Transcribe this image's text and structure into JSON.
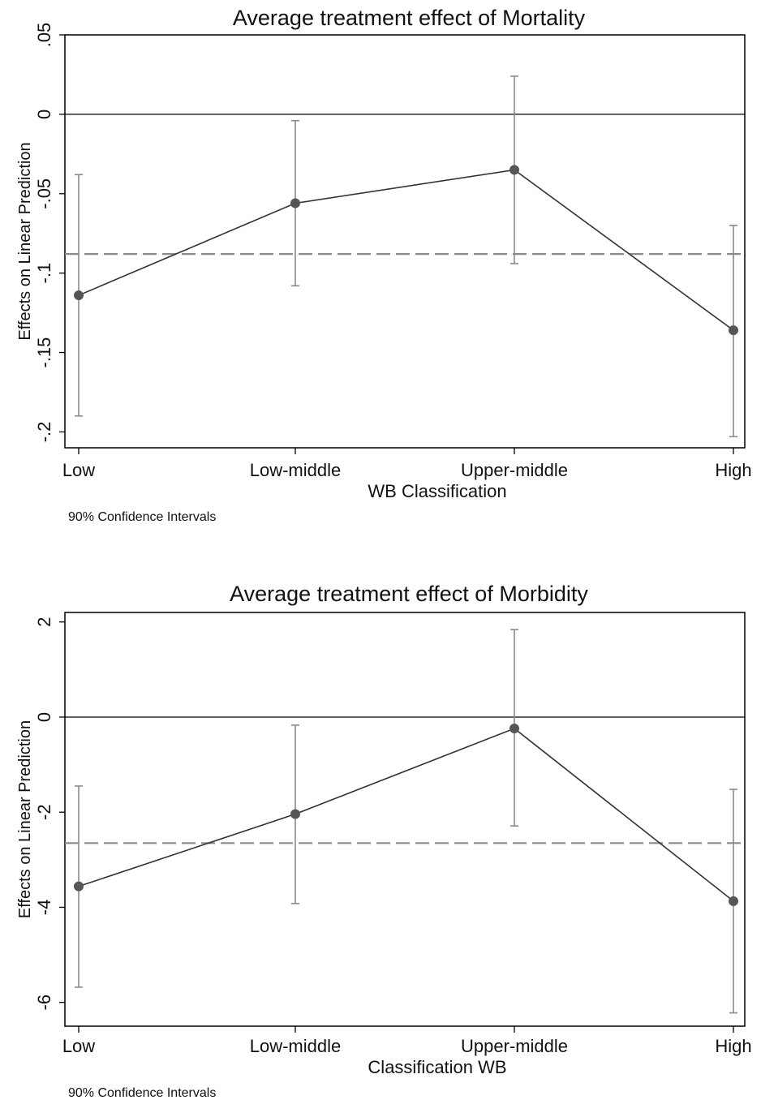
{
  "chart_data": [
    {
      "type": "line",
      "title": "Average treatment effect of Mortality",
      "xlabel": "WB Classification",
      "ylabel": "Effects on Linear Prediction",
      "note": "90% Confidence Intervals",
      "categories": [
        "Low",
        "Low-middle",
        "Upper-middle",
        "High"
      ],
      "values": [
        -0.114,
        -0.056,
        -0.035,
        -0.136
      ],
      "ci_low": [
        -0.19,
        -0.108,
        -0.094,
        -0.203
      ],
      "ci_high": [
        -0.038,
        -0.004,
        0.024,
        -0.07
      ],
      "reference_lines": [
        {
          "style": "solid",
          "value": 0
        },
        {
          "style": "dashed",
          "value": -0.088
        }
      ],
      "yticks": [
        0.05,
        0,
        -0.05,
        -0.1,
        -0.15,
        -0.2
      ],
      "ytick_labels": [
        ".05",
        "0",
        "-.05",
        "-.1",
        "-.15",
        "-.2"
      ],
      "ylim": [
        -0.21,
        0.05
      ],
      "grid": false,
      "colors": {
        "line": "#333333",
        "marker": "#555555",
        "ci": "#8a8a8a",
        "dashed": "#8a8a8a"
      }
    },
    {
      "type": "line",
      "title": "Average treatment effect of Morbidity",
      "xlabel": "Classification WB",
      "ylabel": "Effects on Linear Prediction",
      "note": "90% Confidence Intervals",
      "categories": [
        "Low",
        "Low-middle",
        "Upper-middle",
        "High"
      ],
      "values": [
        -3.56,
        -2.04,
        -0.24,
        -3.87
      ],
      "ci_low": [
        -5.68,
        -3.92,
        -2.29,
        -6.22
      ],
      "ci_high": [
        -1.45,
        -0.17,
        1.84,
        -1.52
      ],
      "reference_lines": [
        {
          "style": "solid",
          "value": 0
        },
        {
          "style": "dashed",
          "value": -2.65
        }
      ],
      "yticks": [
        2,
        0,
        -2,
        -4,
        -6
      ],
      "ytick_labels": [
        "2",
        "0",
        "-2",
        "-4",
        "-6"
      ],
      "ylim": [
        -6.5,
        2.2
      ],
      "grid": false,
      "colors": {
        "line": "#333333",
        "marker": "#555555",
        "ci": "#8a8a8a",
        "dashed": "#8a8a8a"
      }
    }
  ]
}
